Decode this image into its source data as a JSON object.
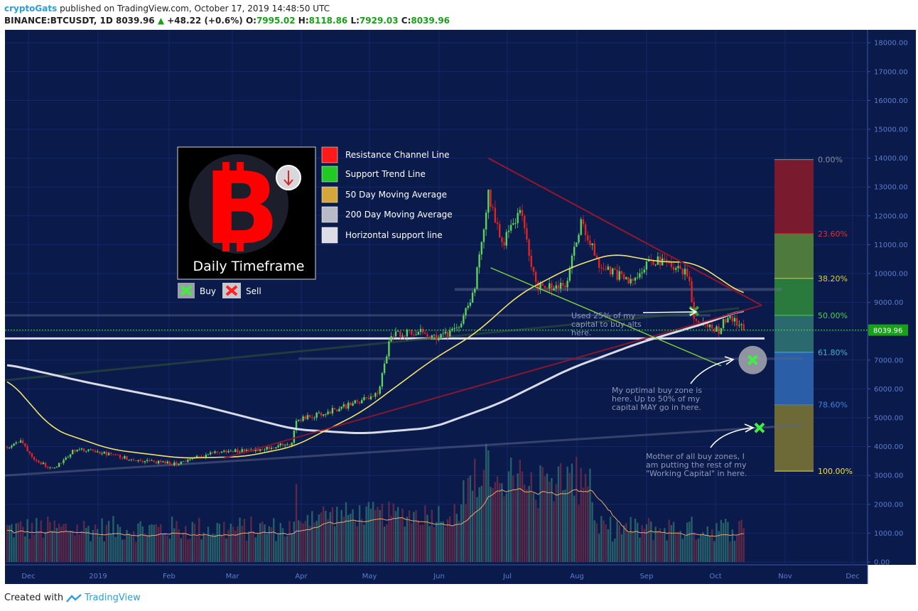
{
  "header": {
    "user": "cryptoGats",
    "published": " published on TradingView.com, October 17, 2019 14:48:50 UTC",
    "symbol": "BINANCE:BTCUSDT, 1D",
    "last": "8039.96",
    "change": "+48.22 (+0.6%)",
    "o_label": "O:",
    "o": "7995.02",
    "h_label": "H:",
    "h": "8118.86",
    "l_label": "L:",
    "l": "7929.03",
    "c_label": "C:",
    "c": "8039.96"
  },
  "footer": {
    "created": "Created with",
    "brand": "TradingView"
  },
  "colors": {
    "background": "#0a1a4a",
    "up": "#5dd35d",
    "down": "#e02424",
    "ma50": "#f2e36a",
    "ma200": "#d9dbe8",
    "resistance": "#8a1730",
    "support": "#7fd23a"
  },
  "logo": {
    "title": "Daily Timeframe",
    "icon": "bitcoin-icon",
    "badge": "arrow-down-icon"
  },
  "legend": {
    "items": [
      {
        "label": "Resistance Channel Line",
        "color": "#ff1a1a"
      },
      {
        "label": "Support Trend Line",
        "color": "#22c922"
      },
      {
        "label": "50 Day Moving Average",
        "color": "#d4a73a"
      },
      {
        "label": "200 Day Moving Average",
        "color": "#b7bac7"
      },
      {
        "label": "Horizontal support line",
        "color": "#dcdde6"
      }
    ],
    "buy": "Buy",
    "sell": "Sell"
  },
  "annotations": {
    "a1": [
      "Used 25% of my",
      "capital to buy alts",
      "here."
    ],
    "a2": [
      "My optimal buy zone is",
      "here. Up to 50% of my",
      "capital MAY go in here."
    ],
    "a3": [
      "Mother of all buy zones, I",
      "am putting the rest of my",
      "\"Working Capital\" in here."
    ]
  },
  "chart_data": {
    "type": "candlestick",
    "ylim": [
      0,
      18000
    ],
    "y_ticks": [
      "18000.00",
      "17000.00",
      "16000.00",
      "15000.00",
      "14000.00",
      "13000.00",
      "12000.00",
      "11000.00",
      "10000.00",
      "9000.00",
      "8000.00",
      "7000.00",
      "6000.00",
      "5000.00",
      "4000.00",
      "3000.00",
      "2000.00",
      "1000.00",
      "0.00"
    ],
    "x_ticks": [
      "Dec",
      "2019",
      "Feb",
      "Mar",
      "Apr",
      "May",
      "Jun",
      "Jul",
      "Aug",
      "Sep",
      "Oct",
      "Nov",
      "Dec"
    ],
    "last_price": "8039.96",
    "price_path": [
      [
        "2018-11-25",
        4000
      ],
      [
        "2018-12-01",
        4200
      ],
      [
        "2018-12-07",
        3600
      ],
      [
        "2018-12-15",
        3200
      ],
      [
        "2018-12-25",
        3900
      ],
      [
        "2019-01-05",
        3800
      ],
      [
        "2019-01-20",
        3550
      ],
      [
        "2019-02-07",
        3400
      ],
      [
        "2019-02-25",
        3800
      ],
      [
        "2019-03-15",
        3900
      ],
      [
        "2019-03-31",
        4100
      ],
      [
        "2019-04-02",
        4900
      ],
      [
        "2019-04-20",
        5300
      ],
      [
        "2019-05-08",
        5800
      ],
      [
        "2019-05-14",
        7900
      ],
      [
        "2019-05-25",
        8000
      ],
      [
        "2019-06-04",
        7800
      ],
      [
        "2019-06-12",
        8000
      ],
      [
        "2019-06-20",
        9500
      ],
      [
        "2019-06-26",
        12800
      ],
      [
        "2019-07-02",
        11000
      ],
      [
        "2019-07-10",
        12200
      ],
      [
        "2019-07-17",
        9600
      ],
      [
        "2019-07-30",
        9500
      ],
      [
        "2019-08-06",
        11800
      ],
      [
        "2019-08-14",
        10300
      ],
      [
        "2019-08-28",
        9700
      ],
      [
        "2019-09-05",
        10500
      ],
      [
        "2019-09-15",
        10300
      ],
      [
        "2019-09-23",
        9900
      ],
      [
        "2019-09-25",
        8400
      ],
      [
        "2019-10-06",
        8000
      ],
      [
        "2019-10-10",
        8600
      ],
      [
        "2019-10-17",
        8040
      ]
    ],
    "ma50_path": [
      [
        "2018-11-25",
        6400
      ],
      [
        "2018-12-15",
        4600
      ],
      [
        "2019-01-10",
        3900
      ],
      [
        "2019-02-10",
        3600
      ],
      [
        "2019-03-10",
        3650
      ],
      [
        "2019-04-01",
        4000
      ],
      [
        "2019-05-01",
        5200
      ],
      [
        "2019-06-01",
        7000
      ],
      [
        "2019-06-20",
        7900
      ],
      [
        "2019-07-10",
        9300
      ],
      [
        "2019-08-01",
        10200
      ],
      [
        "2019-08-20",
        10700
      ],
      [
        "2019-09-10",
        10400
      ],
      [
        "2019-09-25",
        10400
      ],
      [
        "2019-10-05",
        9900
      ],
      [
        "2019-10-17",
        9250
      ]
    ],
    "ma200_path": [
      [
        "2018-11-25",
        6850
      ],
      [
        "2019-01-01",
        6200
      ],
      [
        "2019-02-15",
        5500
      ],
      [
        "2019-04-01",
        4600
      ],
      [
        "2019-05-01",
        4450
      ],
      [
        "2019-06-01",
        4650
      ],
      [
        "2019-07-01",
        5500
      ],
      [
        "2019-08-01",
        6700
      ],
      [
        "2019-09-01",
        7600
      ],
      [
        "2019-10-01",
        8300
      ],
      [
        "2019-10-17",
        8750
      ]
    ],
    "resistance_line": [
      [
        "2019-06-26",
        14000
      ],
      [
        "2019-10-25",
        8900
      ]
    ],
    "resistance_lower": [
      [
        "2019-03-01",
        3600
      ],
      [
        "2019-10-25",
        8900
      ]
    ],
    "support_trend_line": [
      [
        "2019-06-27",
        10200
      ],
      [
        "2019-10-07",
        6800
      ]
    ],
    "horizontal_support": 7750,
    "fib_levels": [
      {
        "label": "0.00%",
        "price": 13950
      },
      {
        "label": "23.60%",
        "price": 11380
      },
      {
        "label": "38.20%",
        "price": 9830
      },
      {
        "label": "50.00%",
        "price": 8550
      },
      {
        "label": "61.80%",
        "price": 7270
      },
      {
        "label": "78.60%",
        "price": 5450
      },
      {
        "label": "100.00%",
        "price": 3150
      }
    ],
    "buy_markers": [
      {
        "date": "2019-09-25",
        "price": 8700
      },
      {
        "date": "2019-10-21",
        "price": 7000
      },
      {
        "date": "2019-10-24",
        "price": 4650
      }
    ]
  }
}
